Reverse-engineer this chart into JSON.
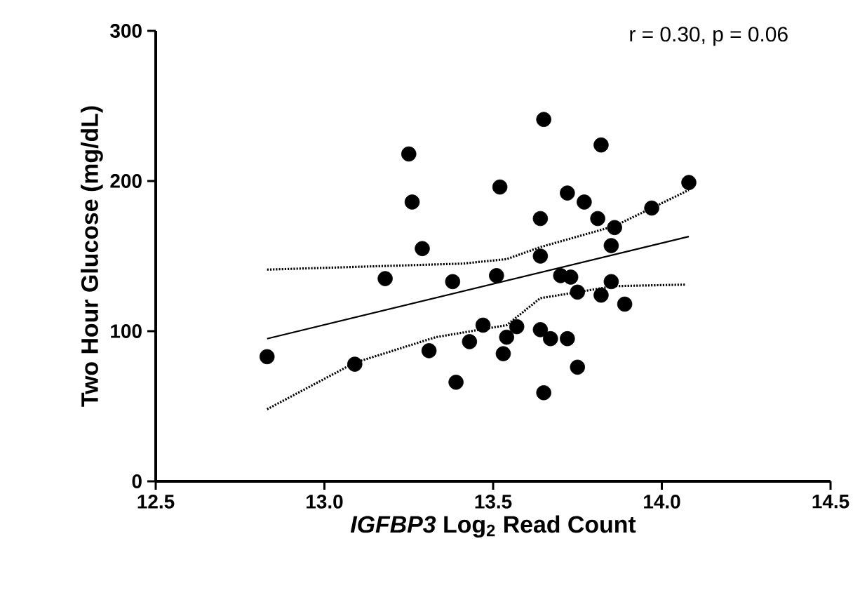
{
  "chart_data": {
    "type": "scatter",
    "xlabel": "*IGFBP3* Log$_{2}$ Read Count",
    "ylabel": "Two Hour Glucose (mg/dL)",
    "annotations": [
      "r = 0.30, p = 0.06"
    ],
    "marker": "circle",
    "xlim": [
      12.5,
      14.5
    ],
    "ylim": [
      0,
      300
    ],
    "xticks": [
      12.5,
      {
        "value": 13,
        "label": "13.0"
      },
      13.5,
      {
        "value": 14,
        "label": "14.0"
      },
      14.5
    ],
    "yticks": [
      0,
      100,
      200,
      300
    ],
    "series": [
      {
        "color": "#000000",
        "x": [
          12.83,
          13.09,
          13.18,
          13.25,
          13.26,
          13.29,
          13.31,
          13.38,
          13.39,
          13.43,
          13.47,
          13.51,
          13.52,
          13.53,
          13.54,
          13.57,
          13.64,
          13.64,
          13.64,
          13.65,
          13.65,
          13.67,
          13.7,
          13.72,
          13.72,
          13.73,
          13.75,
          13.75,
          13.77,
          13.81,
          13.82,
          13.82,
          13.85,
          13.85,
          13.86,
          13.89,
          13.97,
          14.08
        ],
        "values": [
          83,
          78,
          135,
          218,
          186,
          155,
          87,
          133,
          66,
          93,
          104,
          137,
          196,
          85,
          96,
          103,
          175,
          150,
          101,
          241,
          59,
          95,
          137,
          192,
          95,
          136,
          126,
          76,
          186,
          175,
          224,
          124,
          157,
          133,
          169,
          118,
          182,
          199
        ]
      },
      {
        "type": "line",
        "color": "#000000",
        "line_style": "solid",
        "marker": "none",
        "x": [
          12.83,
          14.08
        ],
        "values": [
          95,
          163
        ]
      },
      {
        "type": "line",
        "color": "#000000",
        "line_style": "dotted",
        "marker": "none",
        "x": [
          12.83,
          13.41,
          13.54,
          13.64,
          13.86,
          14.08
        ],
        "values": [
          141,
          145,
          148,
          156,
          170,
          194
        ]
      },
      {
        "type": "line",
        "color": "#000000",
        "line_style": "dotted",
        "marker": "none",
        "x": [
          12.83,
          13.09,
          13.33,
          13.54,
          13.64,
          13.86,
          14.07
        ],
        "values": [
          48,
          79,
          96,
          104,
          122,
          130,
          131
        ]
      }
    ]
  }
}
